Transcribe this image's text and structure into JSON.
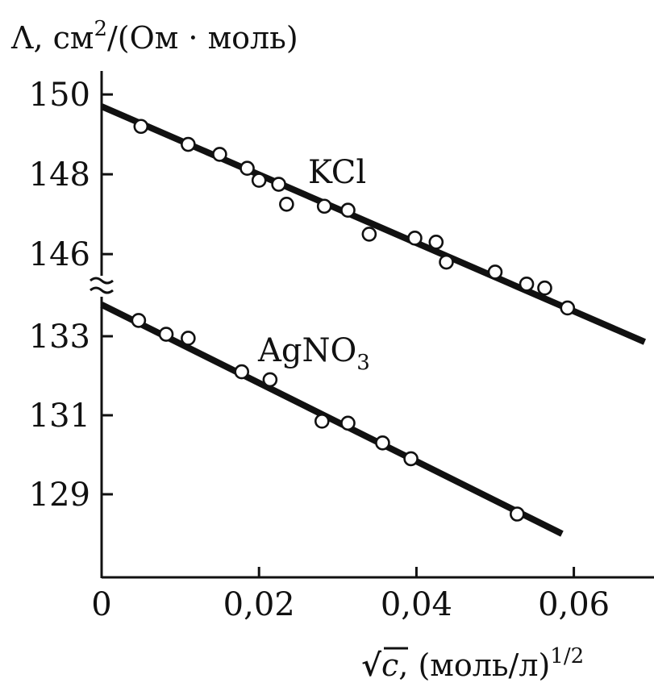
{
  "chart_data": {
    "type": "scatter",
    "title": "",
    "ylabel": {
      "prefix": "Λ, см",
      "exp": "2",
      "suffix": "/(Ом · моль)"
    },
    "xlabel": {
      "root_symbol": "√",
      "var": "c",
      "unit": ", (моль/л)",
      "exp": "1/2"
    },
    "xlim": [
      0,
      0.07
    ],
    "x_ticks": [
      0,
      0.02,
      0.04,
      0.06
    ],
    "x_tick_labels": [
      "0",
      "0,02",
      "0,04",
      "0,06"
    ],
    "axis_break": true,
    "y_upper_segment": {
      "ticks": [
        146,
        148,
        150
      ],
      "tick_labels": [
        "146",
        "148",
        "150"
      ]
    },
    "y_lower_segment": {
      "ticks": [
        129,
        131,
        133
      ],
      "tick_labels": [
        "129",
        "131",
        "133"
      ]
    },
    "grid": false,
    "legend": "none",
    "series": [
      {
        "name": "KCl",
        "name_main": "KCl",
        "name_sub": "",
        "segment": "upper",
        "fit_line": {
          "x": [
            0,
            0.069
          ],
          "y": [
            149.7,
            143.8
          ]
        },
        "points": [
          {
            "x": 0.005,
            "y": 149.2
          },
          {
            "x": 0.011,
            "y": 148.75
          },
          {
            "x": 0.015,
            "y": 148.5
          },
          {
            "x": 0.0185,
            "y": 148.15
          },
          {
            "x": 0.02,
            "y": 147.85
          },
          {
            "x": 0.0225,
            "y": 147.75
          },
          {
            "x": 0.0235,
            "y": 147.25
          },
          {
            "x": 0.0283,
            "y": 147.2
          },
          {
            "x": 0.0313,
            "y": 147.1
          },
          {
            "x": 0.034,
            "y": 146.5
          },
          {
            "x": 0.0398,
            "y": 146.4
          },
          {
            "x": 0.0425,
            "y": 146.3
          },
          {
            "x": 0.0438,
            "y": 145.8
          },
          {
            "x": 0.05,
            "y": 145.55
          },
          {
            "x": 0.054,
            "y": 145.25
          },
          {
            "x": 0.0563,
            "y": 145.15
          },
          {
            "x": 0.0592,
            "y": 144.65
          }
        ]
      },
      {
        "name": "AgNO3",
        "name_main": "AgNO",
        "name_sub": "3",
        "segment": "lower",
        "fit_line": {
          "x": [
            0,
            0.0585
          ],
          "y": [
            133.8,
            128.0
          ]
        },
        "points": [
          {
            "x": 0.0047,
            "y": 133.4
          },
          {
            "x": 0.0082,
            "y": 133.05
          },
          {
            "x": 0.011,
            "y": 132.95
          },
          {
            "x": 0.0178,
            "y": 132.1
          },
          {
            "x": 0.0214,
            "y": 131.9
          },
          {
            "x": 0.028,
            "y": 130.85
          },
          {
            "x": 0.0313,
            "y": 130.8
          },
          {
            "x": 0.0357,
            "y": 130.3
          },
          {
            "x": 0.0393,
            "y": 129.9
          },
          {
            "x": 0.0528,
            "y": 128.5
          }
        ]
      }
    ]
  }
}
